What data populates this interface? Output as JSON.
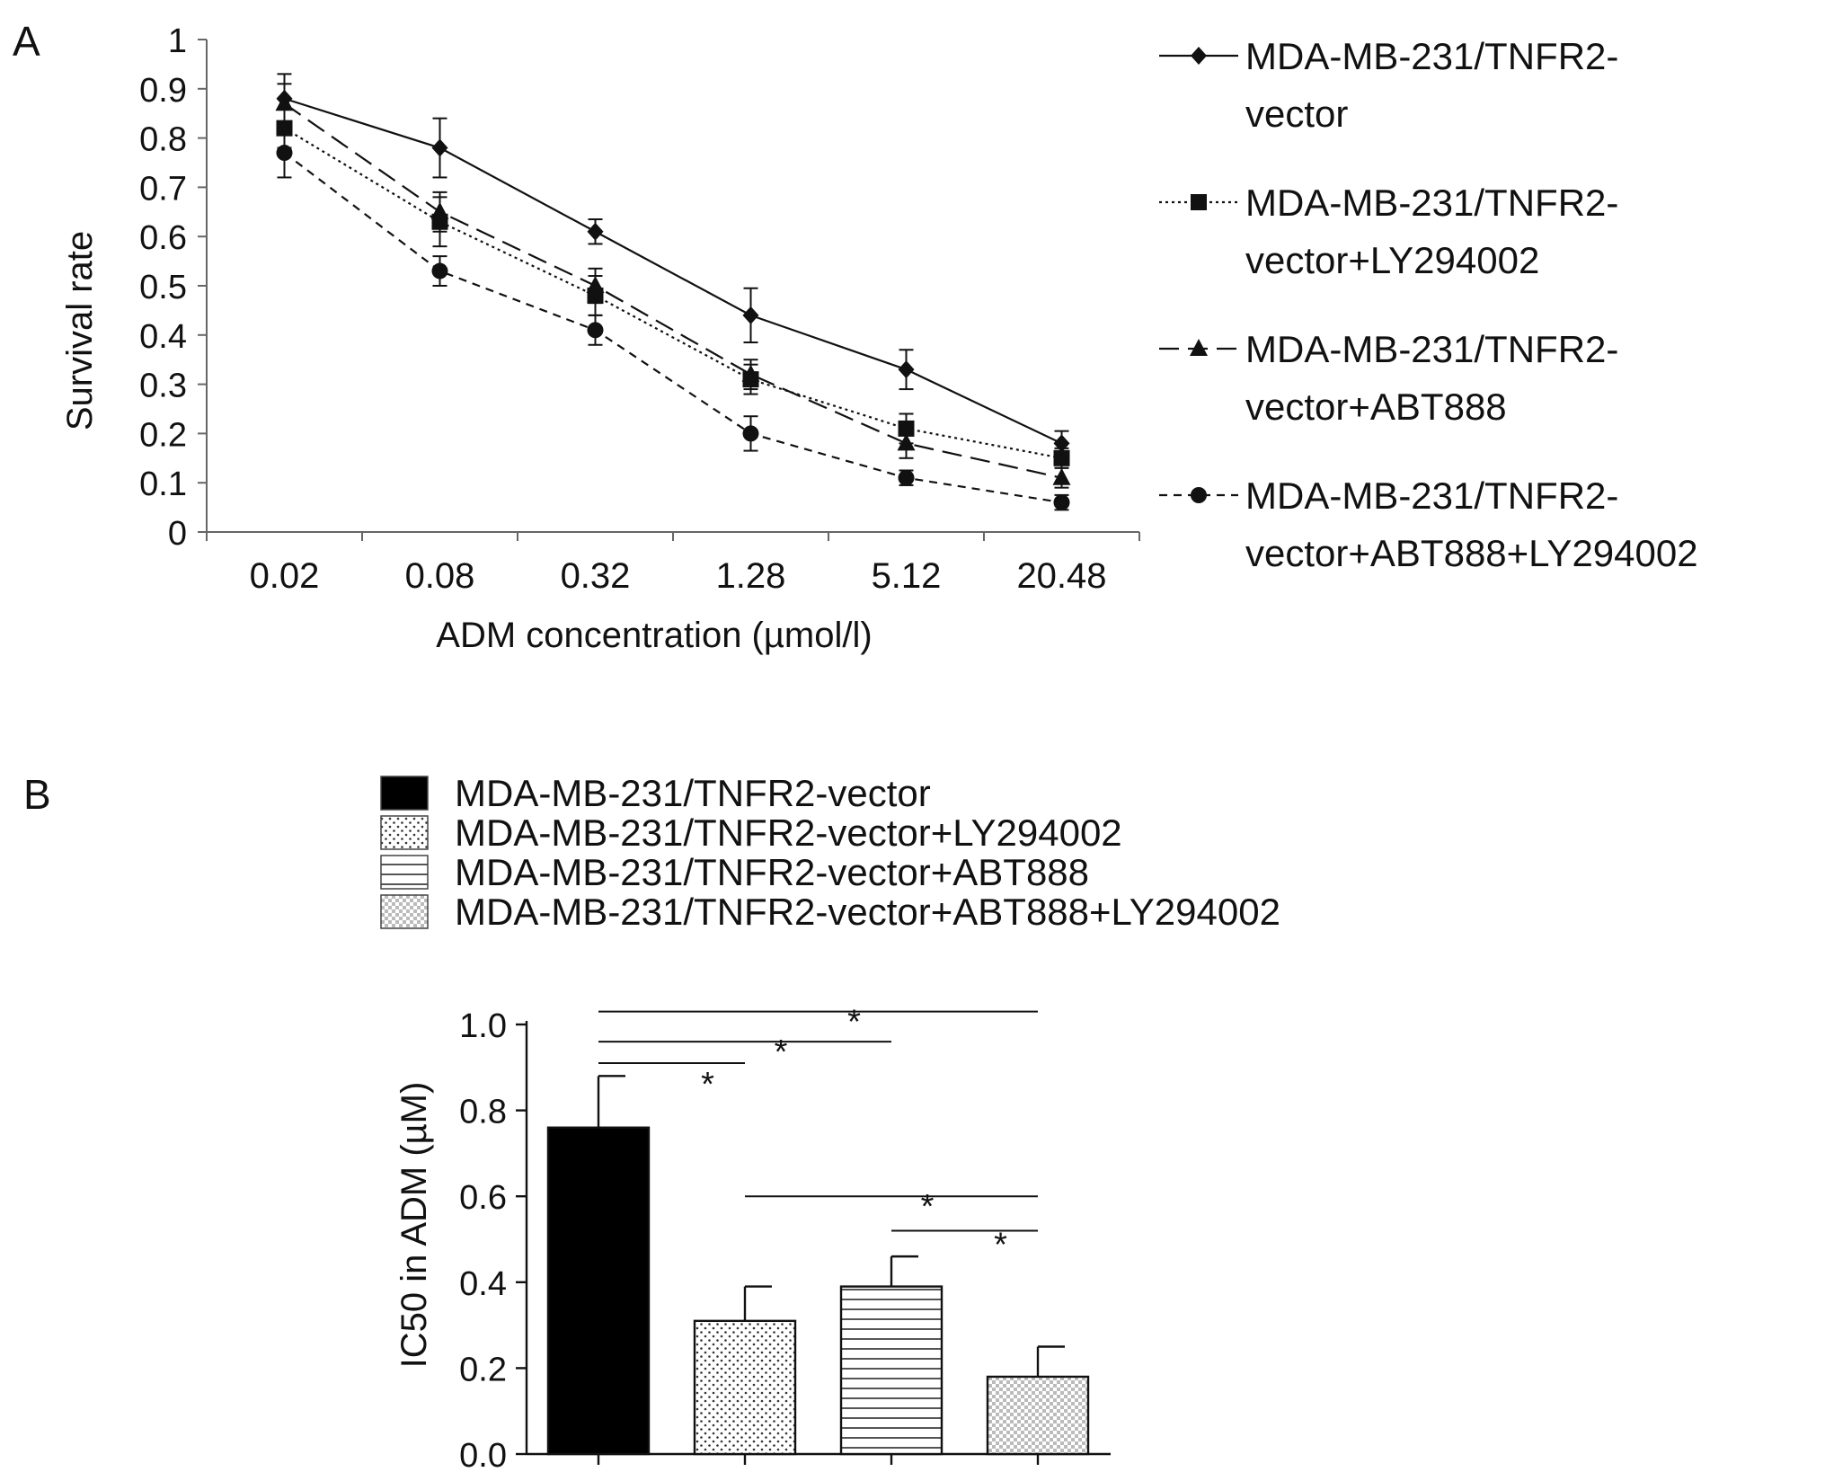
{
  "panels": {
    "a_label": "A",
    "b_label": "B"
  },
  "colors": {
    "ink": "#111111",
    "bar_fill_dark": "#000000",
    "pattern_fill": "#ffffff"
  },
  "chart_data": [
    {
      "type": "line",
      "panel": "A",
      "xlabel": "ADM concentration (µmol/l)",
      "ylabel": "Survival rate",
      "categories": [
        "0.02",
        "0.08",
        "0.32",
        "1.28",
        "5.12",
        "20.48"
      ],
      "yticks": [
        "0",
        "0.1",
        "0.2",
        "0.3",
        "0.4",
        "0.5",
        "0.6",
        "0.7",
        "0.8",
        "0.9",
        "1"
      ],
      "ylim": [
        0,
        1
      ],
      "legend_position": "right",
      "series": [
        {
          "legend_line1": "MDA-MB-231/TNFR2-",
          "legend_line2": "vector",
          "marker": "diamond",
          "dash": "solid",
          "values": [
            0.88,
            0.78,
            0.61,
            0.44,
            0.33,
            0.18
          ],
          "errors": [
            0.05,
            0.06,
            0.025,
            0.055,
            0.04,
            0.025
          ]
        },
        {
          "legend_line1": "MDA-MB-231/TNFR2-",
          "legend_line2": "vector+LY294002",
          "marker": "square",
          "dash": "dotted",
          "values": [
            0.82,
            0.63,
            0.48,
            0.31,
            0.21,
            0.15
          ],
          "errors": [
            0.04,
            0.05,
            0.04,
            0.03,
            0.03,
            0.02
          ]
        },
        {
          "legend_line1": "MDA-MB-231/TNFR2-",
          "legend_line2": "vector+ABT888",
          "marker": "triangle",
          "dash": "long-dash",
          "values": [
            0.87,
            0.65,
            0.5,
            0.32,
            0.18,
            0.11
          ],
          "errors": [
            0.04,
            0.04,
            0.035,
            0.03,
            0.03,
            0.02
          ]
        },
        {
          "legend_line1": "MDA-MB-231/TNFR2-",
          "legend_line2": "vector+ABT888+LY294002",
          "marker": "circle",
          "dash": "short-dash",
          "values": [
            0.77,
            0.53,
            0.41,
            0.2,
            0.11,
            0.06
          ],
          "errors": [
            0.05,
            0.03,
            0.03,
            0.035,
            0.015,
            0.015
          ]
        }
      ]
    },
    {
      "type": "bar",
      "panel": "B",
      "ylabel": "IC50 in ADM (µM)",
      "xlabel": "",
      "yticks": [
        "0.0",
        "0.2",
        "0.4",
        "0.6",
        "0.8",
        "1.0"
      ],
      "ylim": [
        0,
        1
      ],
      "legend_position": "top",
      "series": [
        {
          "name": "MDA-MB-231/TNFR2-vector",
          "pattern": "solid-black",
          "value": 0.76,
          "error": 0.12
        },
        {
          "name": "MDA-MB-231/TNFR2-vector+LY294002",
          "pattern": "dots",
          "value": 0.31,
          "error": 0.08
        },
        {
          "name": "MDA-MB-231/TNFR2-vector+ABT888",
          "pattern": "horizontal-stripes",
          "value": 0.39,
          "error": 0.07
        },
        {
          "name": "MDA-MB-231/TNFR2-vector+ABT888+LY294002",
          "pattern": "crosshatch",
          "value": 0.18,
          "error": 0.07
        }
      ],
      "significance": [
        {
          "from": 0,
          "to": 1,
          "y": 0.91,
          "label": "*"
        },
        {
          "from": 0,
          "to": 2,
          "y": 0.96,
          "label": "*"
        },
        {
          "from": 0,
          "to": 3,
          "y": 1.03,
          "label": "*"
        },
        {
          "from": 1,
          "to": 3,
          "y": 0.6,
          "label": "*"
        },
        {
          "from": 2,
          "to": 3,
          "y": 0.52,
          "label": "*"
        }
      ]
    }
  ]
}
